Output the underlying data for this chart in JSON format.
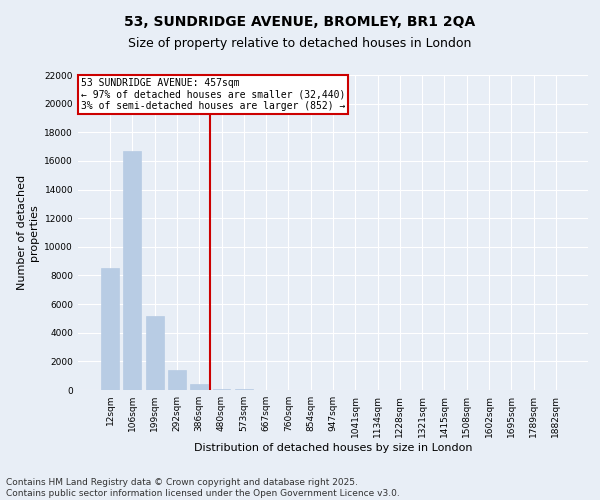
{
  "title_line1": "53, SUNDRIDGE AVENUE, BROMLEY, BR1 2QA",
  "title_line2": "Size of property relative to detached houses in London",
  "xlabel": "Distribution of detached houses by size in London",
  "ylabel": "Number of detached\nproperties",
  "categories": [
    "12sqm",
    "106sqm",
    "199sqm",
    "292sqm",
    "386sqm",
    "480sqm",
    "573sqm",
    "667sqm",
    "760sqm",
    "854sqm",
    "947sqm",
    "1041sqm",
    "1134sqm",
    "1228sqm",
    "1321sqm",
    "1415sqm",
    "1508sqm",
    "1602sqm",
    "1695sqm",
    "1789sqm",
    "1882sqm"
  ],
  "values": [
    8500,
    16700,
    5200,
    1400,
    400,
    100,
    50,
    20,
    10,
    5,
    3,
    2,
    1,
    1,
    1,
    1,
    0,
    0,
    0,
    0,
    0
  ],
  "bar_color": "#b8cce4",
  "bar_edge_color": "#b8cce4",
  "property_line_x": 4.5,
  "annotation_line1": "53 SUNDRIDGE AVENUE: 457sqm",
  "annotation_line2": "← 97% of detached houses are smaller (32,440)",
  "annotation_line3": "3% of semi-detached houses are larger (852) →",
  "annotation_box_color": "#ffffff",
  "annotation_box_edge_color": "#cc0000",
  "vline_color": "#cc0000",
  "ylim": [
    0,
    22000
  ],
  "yticks": [
    0,
    2000,
    4000,
    6000,
    8000,
    10000,
    12000,
    14000,
    16000,
    18000,
    20000,
    22000
  ],
  "footer_line1": "Contains HM Land Registry data © Crown copyright and database right 2025.",
  "footer_line2": "Contains public sector information licensed under the Open Government Licence v3.0.",
  "bg_color": "#e8eef6",
  "plot_bg_color": "#e8eef6",
  "grid_color": "#ffffff",
  "title_fontsize": 10,
  "subtitle_fontsize": 9,
  "tick_fontsize": 6.5,
  "axis_label_fontsize": 8,
  "footer_fontsize": 6.5,
  "annotation_fontsize": 7
}
